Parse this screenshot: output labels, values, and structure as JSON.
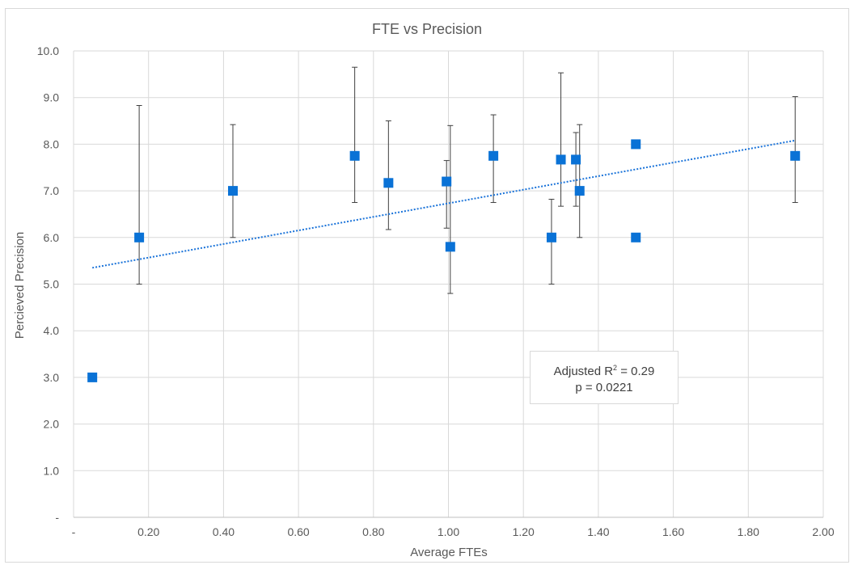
{
  "chart_data": {
    "type": "scatter",
    "title": "FTE vs Precision",
    "xlabel": "Average FTEs",
    "ylabel": "Percieved Precision",
    "xlim": [
      0,
      2.0
    ],
    "ylim": [
      0,
      10.0
    ],
    "x_ticks": [
      "-",
      "0.20",
      "0.40",
      "0.60",
      "0.80",
      "1.00",
      "1.20",
      "1.40",
      "1.60",
      "1.80",
      "2.00"
    ],
    "y_ticks": [
      "-",
      "1.0",
      "2.0",
      "3.0",
      "4.0",
      "5.0",
      "6.0",
      "7.0",
      "8.0",
      "9.0",
      "10.0"
    ],
    "grid": true,
    "marker_color": "#0a72d6",
    "trendline_color": "#1a73d9",
    "points": [
      {
        "x": 0.05,
        "y": 3.0
      },
      {
        "x": 0.175,
        "y": 6.0,
        "err_low": 5.0,
        "err_high": 8.83
      },
      {
        "x": 0.425,
        "y": 7.0,
        "err_low": 6.0,
        "err_high": 8.42
      },
      {
        "x": 0.75,
        "y": 7.75,
        "err_low": 6.75,
        "err_high": 9.65
      },
      {
        "x": 0.84,
        "y": 7.17,
        "err_low": 6.17,
        "err_high": 8.5
      },
      {
        "x": 0.995,
        "y": 7.2,
        "err_low": 6.2,
        "err_high": 7.65
      },
      {
        "x": 1.005,
        "y": 5.8,
        "err_low": 4.8,
        "err_high": 8.4
      },
      {
        "x": 1.12,
        "y": 7.75,
        "err_low": 6.75,
        "err_high": 8.63
      },
      {
        "x": 1.275,
        "y": 6.0,
        "err_low": 5.0,
        "err_high": 6.82
      },
      {
        "x": 1.3,
        "y": 7.67,
        "err_low": 6.67,
        "err_high": 9.53
      },
      {
        "x": 1.34,
        "y": 7.67,
        "err_low": 6.67,
        "err_high": 8.25
      },
      {
        "x": 1.35,
        "y": 7.0,
        "err_low": 6.0,
        "err_high": 8.42
      },
      {
        "x": 1.5,
        "y": 8.0
      },
      {
        "x": 1.5,
        "y": 6.0
      },
      {
        "x": 1.925,
        "y": 7.75,
        "err_low": 6.75,
        "err_high": 9.02
      }
    ],
    "trendline": {
      "x": [
        0.05,
        1.925
      ],
      "y": [
        5.35,
        8.08
      ]
    },
    "annotation": {
      "line1_prefix": "Adjusted R",
      "line1_sup": "2",
      "line1_suffix": " = 0.29",
      "line2": "p = 0.0221"
    }
  }
}
